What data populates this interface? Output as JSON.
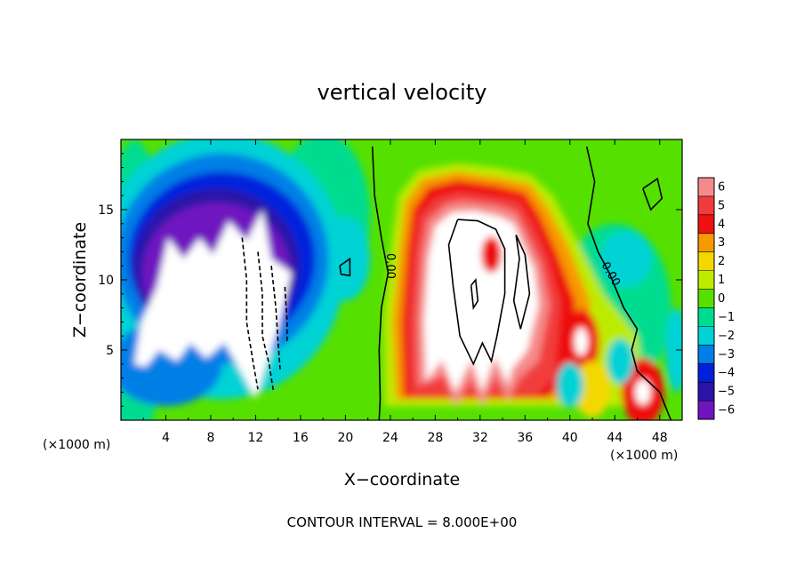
{
  "chart_data": {
    "type": "heatmap",
    "title": "vertical velocity",
    "xlabel": "X−coordinate",
    "ylabel": "Z−coordinate",
    "x_unit_left": "(×1000 m)",
    "x_unit_right": "(×1000 m)",
    "xlim": [
      0,
      50
    ],
    "ylim": [
      0,
      20
    ],
    "x_ticks": [
      4,
      8,
      12,
      16,
      20,
      24,
      28,
      32,
      36,
      40,
      44,
      48
    ],
    "x_tick_labels": [
      "4",
      "8",
      "12",
      "16",
      "20",
      "24",
      "28",
      "32",
      "36",
      "40",
      "44",
      "48"
    ],
    "y_ticks": [
      5,
      10,
      15
    ],
    "y_tick_labels": [
      "5",
      "10",
      "15"
    ],
    "colorbar": {
      "levels": [
        6,
        5,
        4,
        3,
        2,
        1,
        0,
        -1,
        -2,
        -3,
        -4,
        -5,
        -6
      ],
      "labels": [
        "6",
        "5",
        "4",
        "3",
        "2",
        "1",
        "0",
        "−1",
        "−2",
        "−3",
        "−4",
        "−5",
        "−6"
      ],
      "colors": [
        "#f58a8a",
        "#f23c3c",
        "#ee1111",
        "#f79a00",
        "#f3d800",
        "#bdeb00",
        "#56e000",
        "#00dc8f",
        "#00d2d6",
        "#007fe6",
        "#0020dc",
        "#2a14a8",
        "#7014c0"
      ],
      "saturation_color": "#ffffff"
    },
    "contour_labels": [
      "0.00",
      "0.00"
    ],
    "contour_interval": 8.0,
    "features": [
      {
        "kind": "updraft",
        "x": 31,
        "z": 10,
        "max": ">6"
      },
      {
        "kind": "downdraft",
        "x": 9,
        "z": 9.5,
        "min": "<-6"
      }
    ],
    "footer": "CONTOUR INTERVAL =  8.000E+00"
  }
}
